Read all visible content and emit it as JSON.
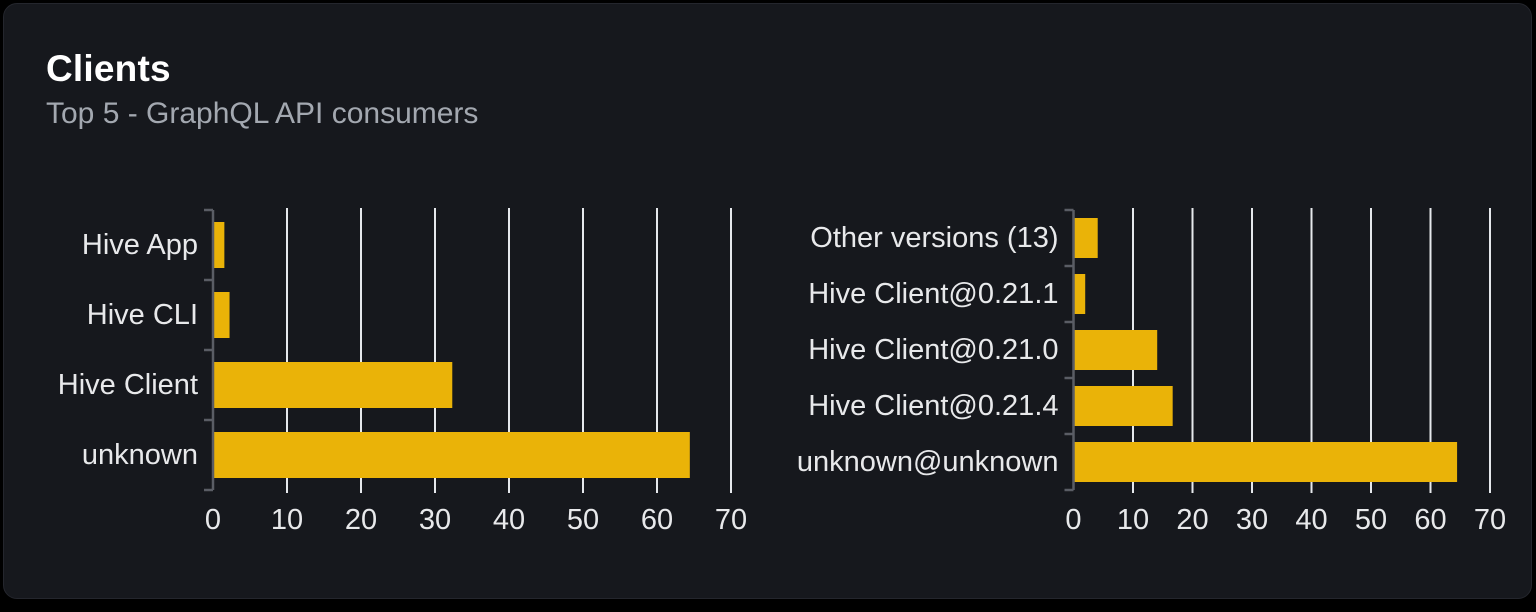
{
  "card": {
    "title": "Clients",
    "subtitle": "Top 5 - GraphQL API consumers"
  },
  "colors": {
    "page_bg": "#000000",
    "card_bg": "#16181d",
    "bar": "#eab308",
    "gridline": "#e5e8ec",
    "axis": "#5a5d65",
    "label": "#e8e9eb",
    "title": "#ffffff",
    "subtitle": "#a3a8b0"
  },
  "chart_data": [
    {
      "type": "bar",
      "orientation": "horizontal",
      "name": "clients-by-name",
      "categories": [
        "Hive App",
        "Hive CLI",
        "Hive Client",
        "unknown"
      ],
      "values": [
        1.4,
        2.1,
        32.2,
        64.3
      ],
      "xlim": [
        0,
        70
      ],
      "xticks": [
        0,
        10,
        20,
        30,
        40,
        50,
        60,
        70
      ],
      "grid": true,
      "legend": false
    },
    {
      "type": "bar",
      "orientation": "horizontal",
      "name": "clients-by-version",
      "categories": [
        "Other versions (13)",
        "Hive Client@0.21.1",
        "Hive Client@0.21.0",
        "Hive Client@0.21.4",
        "unknown@unknown"
      ],
      "values": [
        3.9,
        1.8,
        13.9,
        16.5,
        64.3
      ],
      "xlim": [
        0,
        70
      ],
      "xticks": [
        0,
        10,
        20,
        30,
        40,
        50,
        60,
        70
      ],
      "grid": true,
      "legend": false
    }
  ]
}
